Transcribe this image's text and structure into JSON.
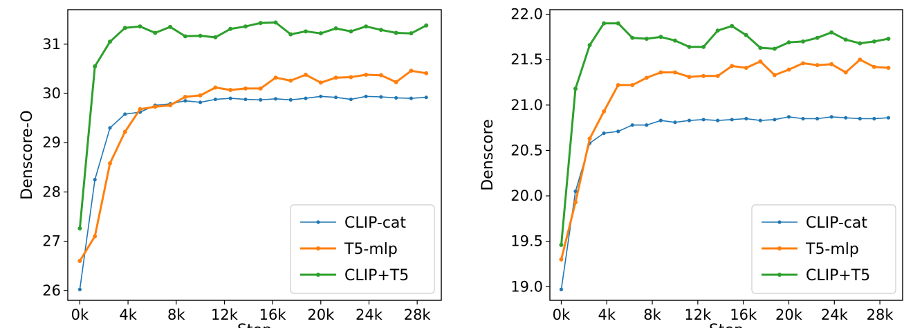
{
  "chart_data": [
    {
      "type": "line",
      "ylabel": "Denscore-O",
      "xlabel": "Step",
      "xlim": [
        -1000,
        30000
      ],
      "ylim": [
        25.8,
        31.7
      ],
      "xticks": [
        0,
        4000,
        8000,
        12000,
        16000,
        20000,
        24000,
        28000
      ],
      "xtick_labels": [
        "0k",
        "4k",
        "8k",
        "12k",
        "16k",
        "20k",
        "24k",
        "28k"
      ],
      "yticks": [
        26,
        27,
        28,
        29,
        30,
        31
      ],
      "ytick_labels": [
        "26",
        "27",
        "28",
        "29",
        "30",
        "31"
      ],
      "legend_position": "lower-right",
      "x": [
        0,
        1250,
        2500,
        3750,
        5000,
        6250,
        7500,
        8750,
        10000,
        11250,
        12500,
        13750,
        15000,
        16250,
        17500,
        18750,
        20000,
        21250,
        22500,
        23750,
        25000,
        26250,
        27500,
        28750
      ],
      "series": [
        {
          "name": "CLIP-cat",
          "color": "#1f77b4",
          "values": [
            26.02,
            28.25,
            29.3,
            29.58,
            29.62,
            29.76,
            29.79,
            29.85,
            29.82,
            29.88,
            29.9,
            29.88,
            29.87,
            29.89,
            29.87,
            29.9,
            29.94,
            29.92,
            29.88,
            29.94,
            29.93,
            29.91,
            29.9,
            29.92
          ]
        },
        {
          "name": "T5-mlp",
          "color": "#ff7f0e",
          "values": [
            26.6,
            27.1,
            28.58,
            29.22,
            29.68,
            29.73,
            29.76,
            29.93,
            29.96,
            30.12,
            30.07,
            30.1,
            30.1,
            30.32,
            30.26,
            30.38,
            30.22,
            30.32,
            30.33,
            30.38,
            30.37,
            30.23,
            30.46,
            30.41
          ]
        },
        {
          "name": "CLIP+T5",
          "color": "#2ca02c",
          "values": [
            27.26,
            30.55,
            31.05,
            31.33,
            31.36,
            31.23,
            31.35,
            31.16,
            31.17,
            31.14,
            31.31,
            31.36,
            31.43,
            31.44,
            31.2,
            31.26,
            31.22,
            31.32,
            31.26,
            31.36,
            31.29,
            31.23,
            31.22,
            31.38
          ]
        }
      ]
    },
    {
      "type": "line",
      "ylabel": "Denscore",
      "xlabel": "Step",
      "xlim": [
        -1000,
        30000
      ],
      "ylim": [
        18.85,
        22.05
      ],
      "xticks": [
        0,
        4000,
        8000,
        12000,
        16000,
        20000,
        24000,
        28000
      ],
      "xtick_labels": [
        "0k",
        "4k",
        "8k",
        "12k",
        "16k",
        "20k",
        "24k",
        "28k"
      ],
      "yticks": [
        19.0,
        19.5,
        20.0,
        20.5,
        21.0,
        21.5,
        22.0
      ],
      "ytick_labels": [
        "19.0",
        "19.5",
        "20.0",
        "20.5",
        "21.0",
        "21.5",
        "22.0"
      ],
      "legend_position": "lower-right",
      "x": [
        0,
        1250,
        2500,
        3750,
        5000,
        6250,
        7500,
        8750,
        10000,
        11250,
        12500,
        13750,
        15000,
        16250,
        17500,
        18750,
        20000,
        21250,
        22500,
        23750,
        25000,
        26250,
        27500,
        28750
      ],
      "series": [
        {
          "name": "CLIP-cat",
          "color": "#1f77b4",
          "values": [
            18.97,
            20.05,
            20.58,
            20.69,
            20.71,
            20.78,
            20.78,
            20.83,
            20.81,
            20.83,
            20.84,
            20.83,
            20.84,
            20.85,
            20.83,
            20.84,
            20.87,
            20.85,
            20.85,
            20.87,
            20.86,
            20.85,
            20.85,
            20.86
          ]
        },
        {
          "name": "T5-mlp",
          "color": "#ff7f0e",
          "values": [
            19.3,
            19.93,
            20.63,
            20.93,
            21.22,
            21.22,
            21.3,
            21.36,
            21.36,
            21.31,
            21.32,
            21.32,
            21.43,
            21.41,
            21.48,
            21.33,
            21.39,
            21.46,
            21.44,
            21.45,
            21.36,
            21.5,
            21.42,
            21.41
          ]
        },
        {
          "name": "CLIP+T5",
          "color": "#2ca02c",
          "values": [
            19.46,
            21.18,
            21.66,
            21.9,
            21.9,
            21.74,
            21.73,
            21.75,
            21.71,
            21.64,
            21.64,
            21.82,
            21.87,
            21.77,
            21.63,
            21.62,
            21.69,
            21.7,
            21.74,
            21.8,
            21.72,
            21.68,
            21.7,
            21.73
          ]
        }
      ]
    }
  ]
}
